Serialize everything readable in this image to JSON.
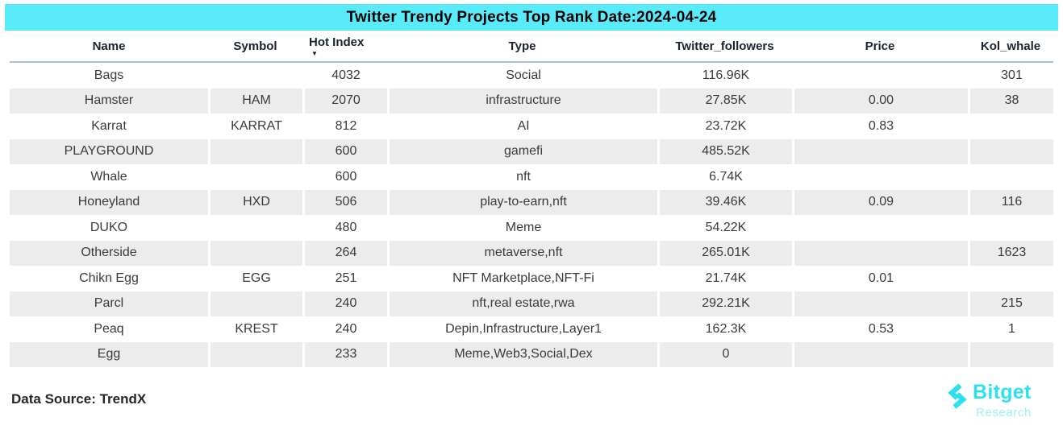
{
  "chart_data": {
    "type": "table",
    "title": "Twitter Trendy Projects Top Rank Date:2024-04-24",
    "sort": {
      "column": "hot_index",
      "direction": "desc",
      "indicator": "▼"
    },
    "columns": [
      {
        "key": "name",
        "label": "Name"
      },
      {
        "key": "symbol",
        "label": "Symbol"
      },
      {
        "key": "hot_index",
        "label": "Hot Index"
      },
      {
        "key": "type",
        "label": "Type"
      },
      {
        "key": "twitter_followers",
        "label": "Twitter_followers"
      },
      {
        "key": "price",
        "label": "Price"
      },
      {
        "key": "kol_whale",
        "label": "Kol_whale"
      }
    ],
    "rows": [
      {
        "name": "Bags",
        "symbol": "",
        "hot_index": "4032",
        "type": "Social",
        "twitter_followers": "116.96K",
        "price": "",
        "kol_whale": "301"
      },
      {
        "name": "Hamster",
        "symbol": "HAM",
        "hot_index": "2070",
        "type": "infrastructure",
        "twitter_followers": "27.85K",
        "price": "0.00",
        "kol_whale": "38"
      },
      {
        "name": "Karrat",
        "symbol": "KARRAT",
        "hot_index": "812",
        "type": "AI",
        "twitter_followers": "23.72K",
        "price": "0.83",
        "kol_whale": ""
      },
      {
        "name": "PLAYGROUND",
        "symbol": "",
        "hot_index": "600",
        "type": "gamefi",
        "twitter_followers": "485.52K",
        "price": "",
        "kol_whale": ""
      },
      {
        "name": "Whale",
        "symbol": "",
        "hot_index": "600",
        "type": "nft",
        "twitter_followers": "6.74K",
        "price": "",
        "kol_whale": ""
      },
      {
        "name": "Honeyland",
        "symbol": "HXD",
        "hot_index": "506",
        "type": "play-to-earn,nft",
        "twitter_followers": "39.46K",
        "price": "0.09",
        "kol_whale": "116"
      },
      {
        "name": "DUKO",
        "symbol": "",
        "hot_index": "480",
        "type": "Meme",
        "twitter_followers": "54.22K",
        "price": "",
        "kol_whale": ""
      },
      {
        "name": "Otherside",
        "symbol": "",
        "hot_index": "264",
        "type": "metaverse,nft",
        "twitter_followers": "265.01K",
        "price": "",
        "kol_whale": "1623"
      },
      {
        "name": "Chikn Egg",
        "symbol": "EGG",
        "hot_index": "251",
        "type": "NFT Marketplace,NFT-Fi",
        "twitter_followers": "21.74K",
        "price": "0.01",
        "kol_whale": ""
      },
      {
        "name": "Parcl",
        "symbol": "",
        "hot_index": "240",
        "type": "nft,real estate,rwa",
        "twitter_followers": "292.21K",
        "price": "",
        "kol_whale": "215"
      },
      {
        "name": "Peaq",
        "symbol": "KREST",
        "hot_index": "240",
        "type": "Depin,Infrastructure,Layer1",
        "twitter_followers": "162.3K",
        "price": "0.53",
        "kol_whale": "1"
      },
      {
        "name": "Egg",
        "symbol": "",
        "hot_index": "233",
        "type": "Meme,Web3,Social,Dex",
        "twitter_followers": "0",
        "price": "",
        "kol_whale": ""
      }
    ]
  },
  "footer": {
    "data_source_label": "Data Source: TrendX"
  },
  "logo": {
    "brand": "Bitget",
    "subtitle": "Research"
  },
  "colors": {
    "title_bar": "#59EBFA",
    "row_stripe": "#ECECEC",
    "header_underline": "#A7C0D9",
    "logo_cyan": "#2DE0F0",
    "logo_subtitle": "#9FF0F8",
    "text": "#3A3A3A"
  }
}
